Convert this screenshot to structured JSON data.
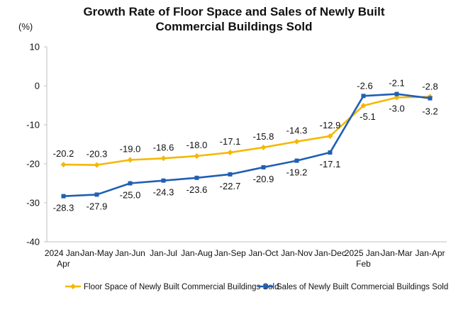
{
  "chart_data": {
    "type": "line",
    "title": "Growth Rate of Floor Space and Sales of Newly Built Commercial Buildings Sold",
    "title_lines": [
      "Growth Rate of Floor Space and Sales of Newly Built",
      "Commercial Buildings Sold"
    ],
    "unit": "(%)",
    "categories": [
      [
        "2024 Jan-",
        "Apr"
      ],
      [
        "Jan-May"
      ],
      [
        "Jan-Jun"
      ],
      [
        "Jan-Jul"
      ],
      [
        "Jan-Aug"
      ],
      [
        "Jan-Sep"
      ],
      [
        "Jan-Oct"
      ],
      [
        "Jan-Nov"
      ],
      [
        "Jan-Dec"
      ],
      [
        "2025 Jan-",
        "Feb"
      ],
      [
        "Jan-Mar"
      ],
      [
        "Jan-Apr"
      ]
    ],
    "ylim": [
      -40,
      10
    ],
    "yticks": [
      10,
      0,
      -10,
      -20,
      -30,
      -40
    ],
    "grid": false,
    "legend_position": "bottom",
    "series": [
      {
        "name": "Floor Space of Newly Built Commercial Buildings Sold",
        "color": "#F5B800",
        "marker": "diamond",
        "values": [
          -20.2,
          -20.3,
          -19.0,
          -18.6,
          -18.0,
          -17.1,
          -15.8,
          -14.3,
          -12.9,
          -5.1,
          -3.0,
          -2.8
        ],
        "labels": [
          "-20.2",
          "-20.3",
          "-19.0",
          "-18.6",
          "-18.0",
          "-17.1",
          "-15.8",
          "-14.3",
          "-12.9",
          "-5.1",
          "-3.0",
          "-2.8"
        ]
      },
      {
        "name": "Sales of Newly Built Commercial Buildings Sold",
        "color": "#1F5FB4",
        "marker": "square",
        "values": [
          -28.3,
          -27.9,
          -25.0,
          -24.3,
          -23.6,
          -22.7,
          -20.9,
          -19.2,
          -17.1,
          -2.6,
          -2.1,
          -3.2
        ],
        "labels": [
          "-28.3",
          "-27.9",
          "-25.0",
          "-24.3",
          "-23.6",
          "-22.7",
          "-20.9",
          "-19.2",
          "-17.1",
          "-2.6",
          "-2.1",
          "-3.2"
        ]
      }
    ]
  }
}
